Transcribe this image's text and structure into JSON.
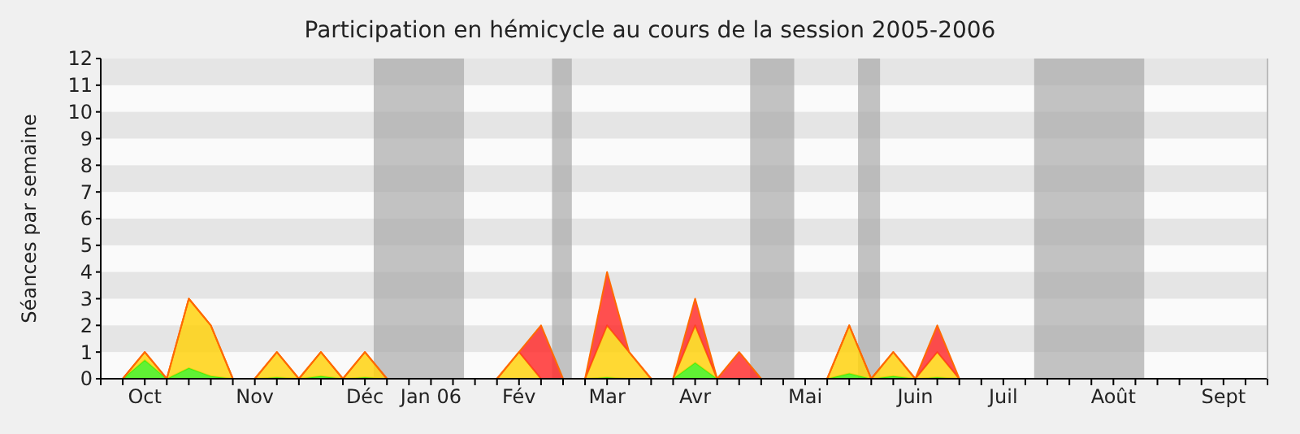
{
  "chart_data": {
    "type": "area",
    "title": "Participation en hémicycle au cours de la session 2005-2006",
    "ylabel": "Séances par semaine",
    "stacked": true,
    "categories": [
      null,
      null,
      "Oct",
      null,
      null,
      null,
      null,
      "Nov",
      null,
      null,
      null,
      null,
      "Déc",
      null,
      null,
      "Jan 06",
      null,
      null,
      null,
      "Fév",
      null,
      null,
      null,
      "Mar",
      null,
      null,
      null,
      "Avr",
      null,
      null,
      null,
      null,
      "Mai",
      null,
      null,
      null,
      null,
      "Juin",
      null,
      null,
      null,
      "Juil",
      null,
      null,
      null,
      null,
      "Août",
      null,
      null,
      null,
      null,
      "Sept",
      null,
      null
    ],
    "series": [
      {
        "color": "#44ee11",
        "values": [
          null,
          0,
          0.7,
          0,
          0.4,
          0.1,
          0,
          0,
          0.05,
          0,
          0.1,
          0,
          0.05,
          0,
          0,
          0,
          0,
          0,
          0,
          0,
          0,
          0,
          0,
          0.05,
          0,
          0,
          0,
          0.6,
          0,
          0,
          0,
          0,
          0,
          0,
          0.2,
          0,
          0.1,
          0,
          0.05,
          0,
          null,
          null,
          null,
          null,
          null,
          null,
          null,
          null,
          null,
          null,
          null,
          null,
          null,
          null
        ]
      },
      {
        "color": "#ffd20f",
        "values": [
          null,
          0,
          0.3,
          0,
          2.6,
          1.9,
          0,
          0,
          0.95,
          0,
          0.9,
          0,
          0.95,
          0,
          0,
          0,
          0,
          0,
          0,
          1,
          0,
          0,
          0,
          1.95,
          1,
          0,
          0,
          1.4,
          0,
          0,
          0,
          0,
          0,
          0,
          1.8,
          0,
          0.9,
          0,
          0.95,
          0,
          null,
          null,
          null,
          null,
          null,
          null,
          null,
          null,
          null,
          null,
          null,
          null,
          null,
          null
        ]
      },
      {
        "color": "#ff3030",
        "values": [
          null,
          0,
          0,
          0,
          0,
          0,
          0,
          0,
          0,
          0,
          0,
          0,
          0,
          0,
          0,
          0,
          0,
          0,
          0,
          0,
          2,
          0,
          0,
          2,
          0,
          0,
          0,
          1,
          0,
          1,
          0,
          0,
          0,
          0,
          0,
          0,
          0,
          0,
          1,
          0,
          null,
          null,
          null,
          null,
          null,
          null,
          null,
          null,
          null,
          null,
          null,
          null,
          null,
          null
        ]
      }
    ],
    "ylim": [
      0,
      12
    ],
    "yticks": [
      0,
      1,
      2,
      3,
      4,
      5,
      6,
      7,
      8,
      9,
      10,
      11,
      12
    ]
  }
}
